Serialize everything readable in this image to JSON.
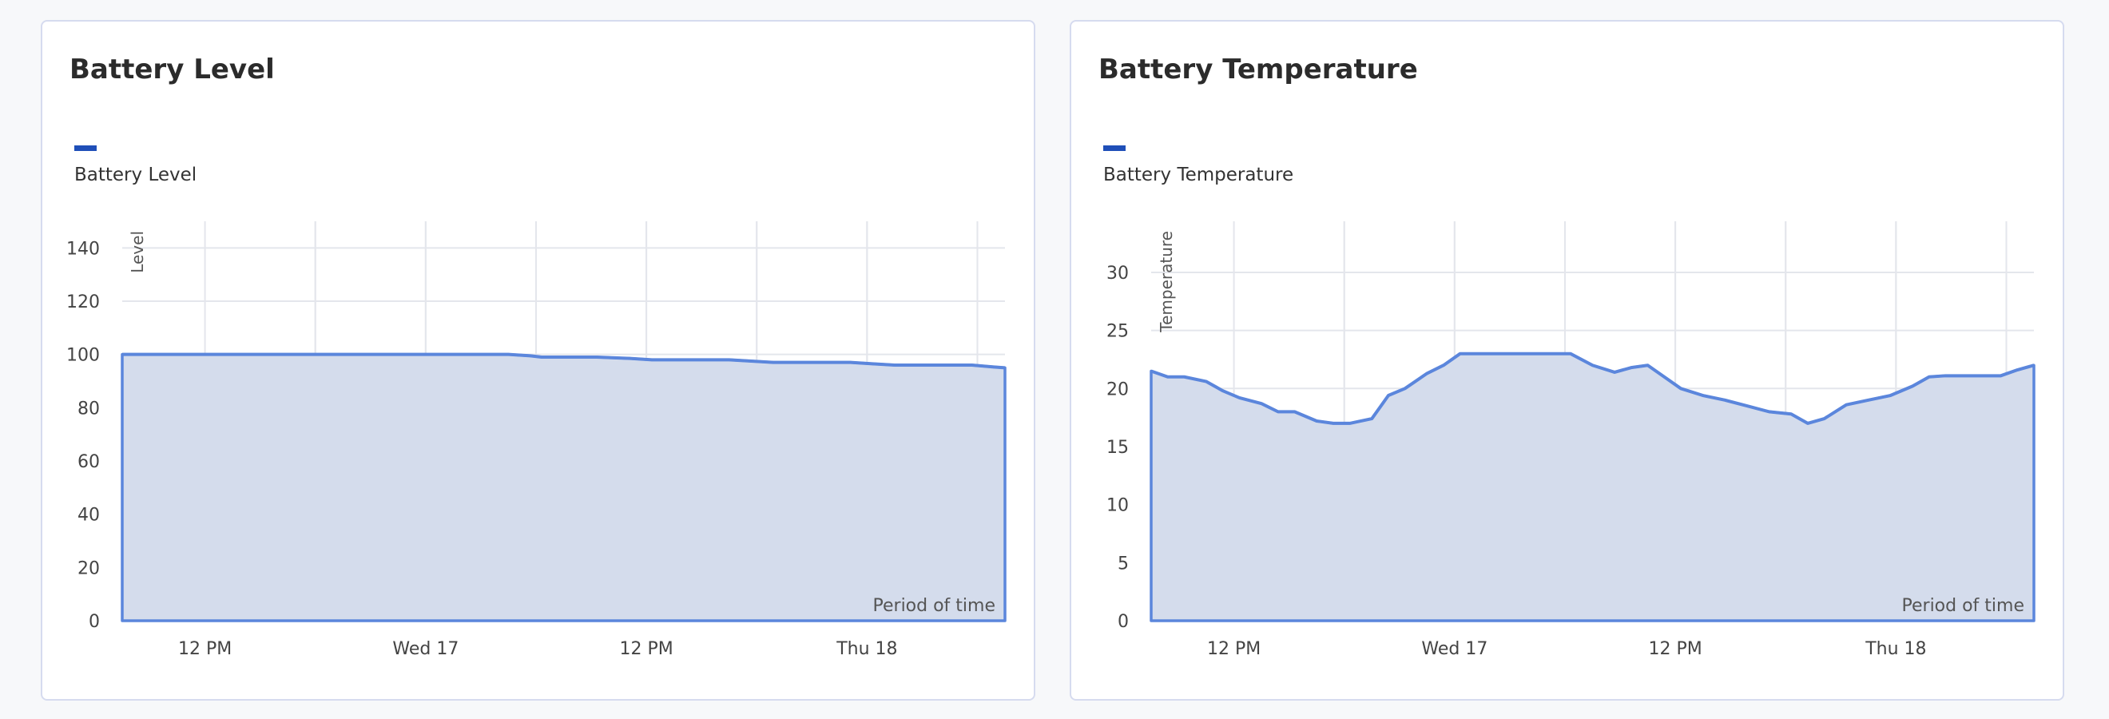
{
  "colors": {
    "line": "#5b86dc",
    "fill": "#d4dcec",
    "grid": "#e4e6ec",
    "axis_text": "#444444",
    "legend": "#1f4fb8"
  },
  "chart_data": [
    {
      "type": "area",
      "title": "Battery Level",
      "legend": [
        "Battery Level"
      ],
      "ylabel": "Level",
      "xlabel": "Period of time",
      "ylim": [
        0,
        150
      ],
      "yticks": [
        0,
        20,
        40,
        60,
        80,
        100,
        120,
        140
      ],
      "xticks": [
        {
          "t": 0.75,
          "label": "12 PM"
        },
        {
          "t": 2.75,
          "label": "Wed 17"
        },
        {
          "t": 4.75,
          "label": "12 PM"
        },
        {
          "t": 6.75,
          "label": "Thu 18"
        }
      ],
      "xlim": [
        0,
        8
      ],
      "grid": true,
      "series": [
        {
          "name": "Battery Level",
          "points": [
            [
              0,
              100
            ],
            [
              1,
              100
            ],
            [
              2,
              100
            ],
            [
              3,
              100
            ],
            [
              3.5,
              100
            ],
            [
              3.7,
              99.5
            ],
            [
              3.8,
              99
            ],
            [
              4.3,
              99
            ],
            [
              4.6,
              98.5
            ],
            [
              4.8,
              98
            ],
            [
              5.5,
              98
            ],
            [
              5.7,
              97.5
            ],
            [
              5.9,
              97
            ],
            [
              6.6,
              97
            ],
            [
              6.8,
              96.5
            ],
            [
              7,
              96
            ],
            [
              7.7,
              96
            ],
            [
              7.9,
              95.3
            ],
            [
              8,
              95
            ]
          ]
        }
      ]
    },
    {
      "type": "area",
      "title": "Battery Temperature",
      "legend": [
        "Battery Temperature"
      ],
      "ylabel": "Temperature",
      "xlabel": "Period of time",
      "ylim": [
        0,
        34.4
      ],
      "yticks": [
        0,
        5,
        10,
        15,
        20,
        25,
        30
      ],
      "xticks": [
        {
          "t": 0.75,
          "label": "12 PM"
        },
        {
          "t": 2.75,
          "label": "Wed 17"
        },
        {
          "t": 4.75,
          "label": "12 PM"
        },
        {
          "t": 6.75,
          "label": "Thu 18"
        }
      ],
      "xlim": [
        0,
        8
      ],
      "grid": true,
      "series": [
        {
          "name": "Battery Temperature",
          "points": [
            [
              0,
              21.5
            ],
            [
              0.15,
              21
            ],
            [
              0.3,
              21
            ],
            [
              0.5,
              20.6
            ],
            [
              0.65,
              19.8
            ],
            [
              0.8,
              19.2
            ],
            [
              1,
              18.7
            ],
            [
              1.15,
              18
            ],
            [
              1.3,
              18
            ],
            [
              1.5,
              17.2
            ],
            [
              1.65,
              17
            ],
            [
              1.8,
              17
            ],
            [
              2,
              17.4
            ],
            [
              2.15,
              19.4
            ],
            [
              2.3,
              20
            ],
            [
              2.5,
              21.3
            ],
            [
              2.65,
              22
            ],
            [
              2.8,
              23
            ],
            [
              3,
              23
            ],
            [
              3.5,
              23
            ],
            [
              3.8,
              23
            ],
            [
              4,
              22
            ],
            [
              4.2,
              21.4
            ],
            [
              4.35,
              21.8
            ],
            [
              4.5,
              22
            ],
            [
              4.65,
              21
            ],
            [
              4.8,
              20
            ],
            [
              5,
              19.4
            ],
            [
              5.2,
              19
            ],
            [
              5.4,
              18.5
            ],
            [
              5.6,
              18
            ],
            [
              5.8,
              17.8
            ],
            [
              5.95,
              17
            ],
            [
              6.1,
              17.4
            ],
            [
              6.3,
              18.6
            ],
            [
              6.5,
              19
            ],
            [
              6.7,
              19.4
            ],
            [
              6.9,
              20.2
            ],
            [
              7.05,
              21
            ],
            [
              7.2,
              21.1
            ],
            [
              7.4,
              21.1
            ],
            [
              7.7,
              21.1
            ],
            [
              7.85,
              21.6
            ],
            [
              8,
              22
            ]
          ]
        }
      ]
    }
  ]
}
